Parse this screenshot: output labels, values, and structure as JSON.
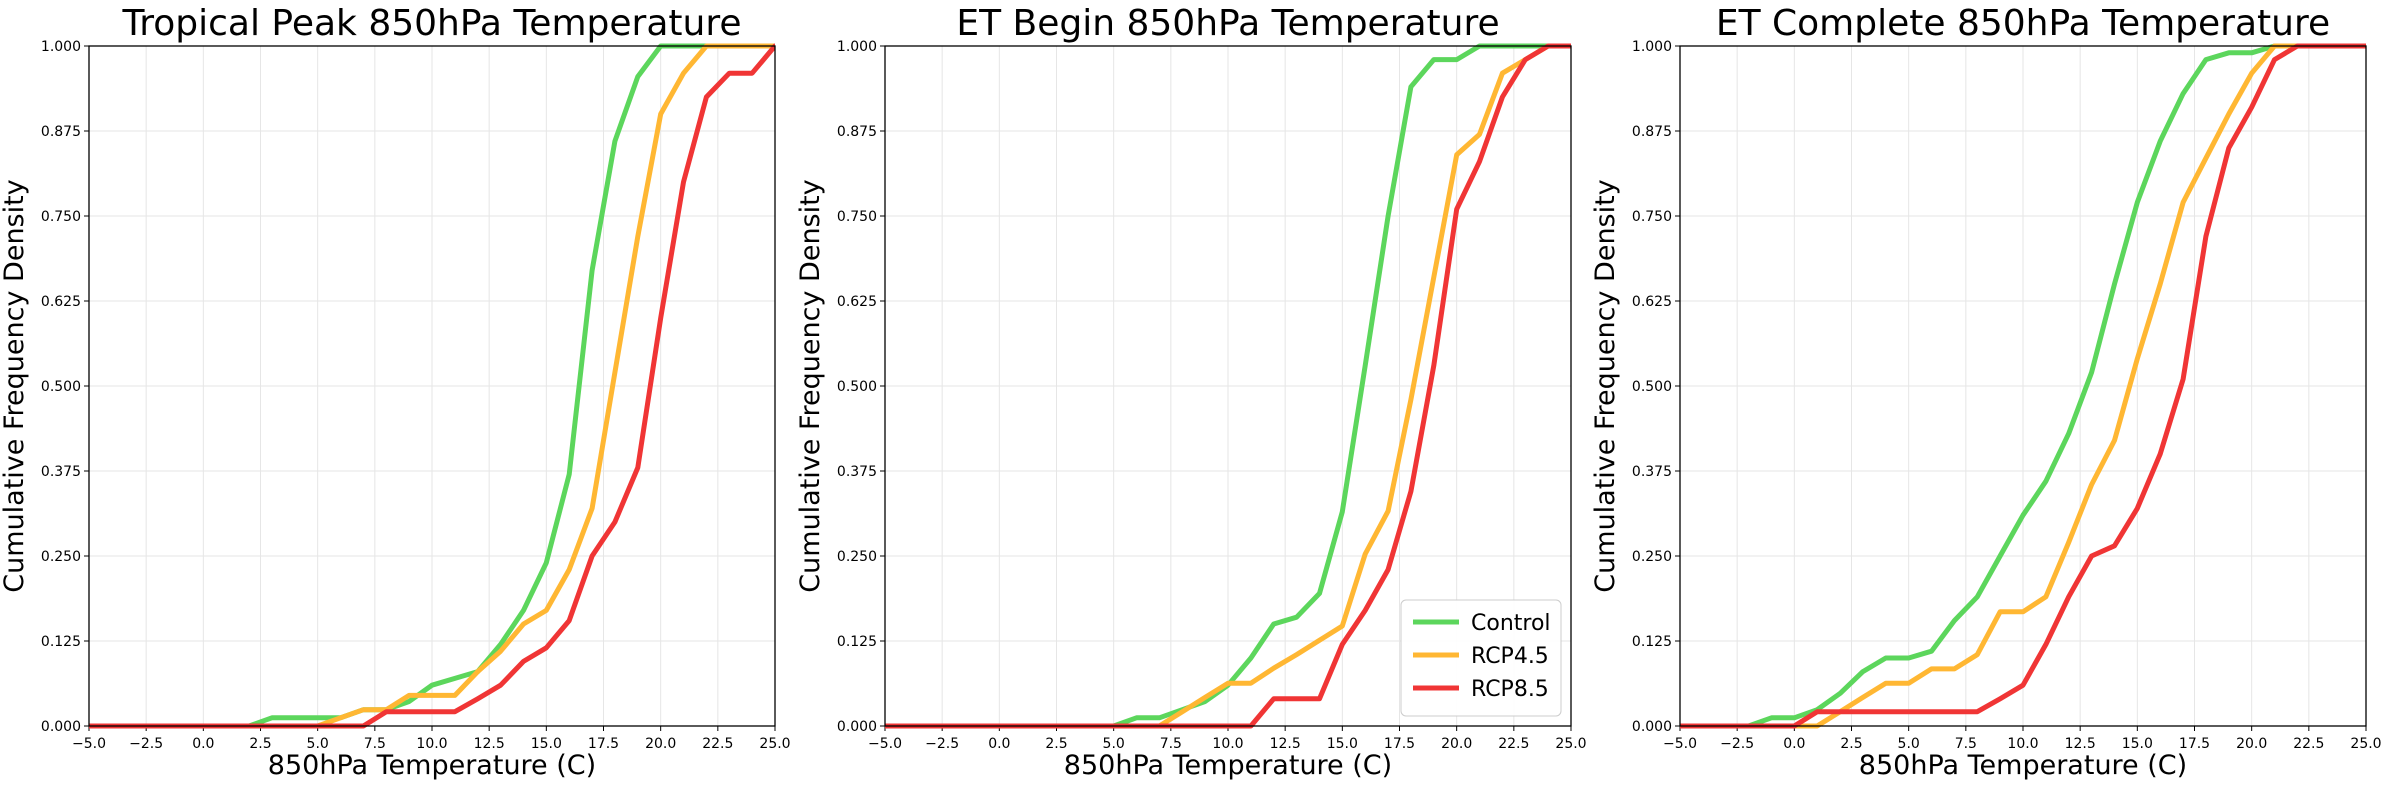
{
  "chart_data": [
    {
      "type": "line",
      "title": "Tropical Peak 850hPa Temperature",
      "xlabel": "850hPa Temperature (C)",
      "ylabel": "Cumulative Frequency Density",
      "xlim": [
        -5,
        25
      ],
      "ylim": [
        0,
        1
      ],
      "xticks": [
        "−5.0",
        "−2.5",
        "0.0",
        "2.5",
        "5.0",
        "7.5",
        "10.0",
        "12.5",
        "15.0",
        "17.5",
        "20.0",
        "22.5",
        "25.0"
      ],
      "yticks": [
        "0.000",
        "0.125",
        "0.250",
        "0.375",
        "0.500",
        "0.625",
        "0.750",
        "0.875",
        "1.000"
      ],
      "grid": true,
      "legend": null,
      "series": [
        {
          "name": "Control",
          "color": "#5cd65c",
          "points": [
            [
              -5,
              0
            ],
            [
              2,
              0
            ],
            [
              3,
              0.012
            ],
            [
              4,
              0.012
            ],
            [
              5,
              0.012
            ],
            [
              6,
              0.012
            ],
            [
              7,
              0.024
            ],
            [
              8,
              0.024
            ],
            [
              9,
              0.036
            ],
            [
              10,
              0.06
            ],
            [
              11,
              0.07
            ],
            [
              12,
              0.08
            ],
            [
              13,
              0.12
            ],
            [
              14,
              0.17
            ],
            [
              15,
              0.24
            ],
            [
              16,
              0.37
            ],
            [
              17,
              0.67
            ],
            [
              18,
              0.86
            ],
            [
              19,
              0.955
            ],
            [
              20,
              1.0
            ],
            [
              25,
              1.0
            ]
          ]
        },
        {
          "name": "RCP4.5",
          "color": "#ffb733",
          "points": [
            [
              -5,
              0
            ],
            [
              5,
              0
            ],
            [
              6,
              0.012
            ],
            [
              7,
              0.024
            ],
            [
              8,
              0.024
            ],
            [
              9,
              0.045
            ],
            [
              10,
              0.045
            ],
            [
              11,
              0.045
            ],
            [
              12,
              0.08
            ],
            [
              13,
              0.11
            ],
            [
              14,
              0.15
            ],
            [
              15,
              0.17
            ],
            [
              16,
              0.23
            ],
            [
              17,
              0.32
            ],
            [
              18,
              0.52
            ],
            [
              19,
              0.72
            ],
            [
              20,
              0.9
            ],
            [
              21,
              0.96
            ],
            [
              22,
              1.0
            ],
            [
              25,
              1.0
            ]
          ]
        },
        {
          "name": "RCP8.5",
          "color": "#f03535",
          "points": [
            [
              -5,
              0
            ],
            [
              7,
              0
            ],
            [
              8,
              0.021
            ],
            [
              9,
              0.021
            ],
            [
              10,
              0.021
            ],
            [
              11,
              0.021
            ],
            [
              12,
              0.04
            ],
            [
              13,
              0.06
            ],
            [
              14,
              0.095
            ],
            [
              15,
              0.115
            ],
            [
              16,
              0.155
            ],
            [
              17,
              0.25
            ],
            [
              18,
              0.3
            ],
            [
              19,
              0.38
            ],
            [
              20,
              0.6
            ],
            [
              21,
              0.8
            ],
            [
              22,
              0.925
            ],
            [
              23,
              0.96
            ],
            [
              24,
              0.96
            ],
            [
              25,
              1.0
            ]
          ]
        }
      ]
    },
    {
      "type": "line",
      "title": "ET Begin 850hPa Temperature",
      "xlabel": "850hPa Temperature (C)",
      "ylabel": "Cumulative Frequency Density",
      "xlim": [
        -5,
        25
      ],
      "ylim": [
        0,
        1
      ],
      "xticks": [
        "−5.0",
        "−2.5",
        "0.0",
        "2.5",
        "5.0",
        "7.5",
        "10.0",
        "12.5",
        "15.0",
        "17.5",
        "20.0",
        "22.5",
        "25.0"
      ],
      "yticks": [
        "0.000",
        "0.125",
        "0.250",
        "0.375",
        "0.500",
        "0.625",
        "0.750",
        "0.875",
        "1.000"
      ],
      "grid": true,
      "legend": "lower right",
      "series": [
        {
          "name": "Control",
          "color": "#5cd65c",
          "points": [
            [
              -5,
              0
            ],
            [
              5,
              0
            ],
            [
              6,
              0.012
            ],
            [
              7,
              0.012
            ],
            [
              8,
              0.024
            ],
            [
              9,
              0.036
            ],
            [
              10,
              0.06
            ],
            [
              11,
              0.1
            ],
            [
              12,
              0.15
            ],
            [
              13,
              0.16
            ],
            [
              14,
              0.195
            ],
            [
              15,
              0.315
            ],
            [
              16,
              0.53
            ],
            [
              17,
              0.75
            ],
            [
              18,
              0.94
            ],
            [
              19,
              0.98
            ],
            [
              20,
              0.98
            ],
            [
              21,
              1.0
            ],
            [
              25,
              1.0
            ]
          ]
        },
        {
          "name": "RCP4.5",
          "color": "#ffb733",
          "points": [
            [
              -5,
              0
            ],
            [
              7,
              0
            ],
            [
              8,
              0.021
            ],
            [
              9,
              0.042
            ],
            [
              10,
              0.063
            ],
            [
              11,
              0.063
            ],
            [
              12,
              0.085
            ],
            [
              13,
              0.105
            ],
            [
              14,
              0.126
            ],
            [
              15,
              0.147
            ],
            [
              16,
              0.253
            ],
            [
              17,
              0.316
            ],
            [
              18,
              0.48
            ],
            [
              19,
              0.66
            ],
            [
              20,
              0.84
            ],
            [
              21,
              0.87
            ],
            [
              22,
              0.96
            ],
            [
              23,
              0.98
            ],
            [
              24,
              1.0
            ],
            [
              25,
              1.0
            ]
          ]
        },
        {
          "name": "RCP8.5",
          "color": "#f03535",
          "points": [
            [
              -5,
              0
            ],
            [
              11,
              0
            ],
            [
              12,
              0.04
            ],
            [
              13,
              0.04
            ],
            [
              14,
              0.04
            ],
            [
              15,
              0.12
            ],
            [
              16,
              0.17
            ],
            [
              17,
              0.23
            ],
            [
              18,
              0.345
            ],
            [
              19,
              0.53
            ],
            [
              20,
              0.76
            ],
            [
              21,
              0.83
            ],
            [
              22,
              0.925
            ],
            [
              23,
              0.98
            ],
            [
              24,
              1.0
            ],
            [
              25,
              1.0
            ]
          ]
        }
      ]
    },
    {
      "type": "line",
      "title": "ET Complete 850hPa Temperature",
      "xlabel": "850hPa Temperature (C)",
      "ylabel": "Cumulative Frequency Density",
      "xlim": [
        -5,
        25
      ],
      "ylim": [
        0,
        1
      ],
      "xticks": [
        "−5.0",
        "−2.5",
        "0.0",
        "2.5",
        "5.0",
        "7.5",
        "10.0",
        "12.5",
        "15.0",
        "17.5",
        "20.0",
        "22.5",
        "25.0"
      ],
      "yticks": [
        "0.000",
        "0.125",
        "0.250",
        "0.375",
        "0.500",
        "0.625",
        "0.750",
        "0.875",
        "1.000"
      ],
      "grid": true,
      "legend": null,
      "series": [
        {
          "name": "Control",
          "color": "#5cd65c",
          "points": [
            [
              -5,
              0
            ],
            [
              -2,
              0
            ],
            [
              -1,
              0.012
            ],
            [
              0,
              0.012
            ],
            [
              1,
              0.024
            ],
            [
              2,
              0.048
            ],
            [
              3,
              0.08
            ],
            [
              4,
              0.1
            ],
            [
              5,
              0.1
            ],
            [
              6,
              0.11
            ],
            [
              7,
              0.155
            ],
            [
              8,
              0.19
            ],
            [
              9,
              0.25
            ],
            [
              10,
              0.31
            ],
            [
              11,
              0.36
            ],
            [
              12,
              0.43
            ],
            [
              13,
              0.52
            ],
            [
              14,
              0.65
            ],
            [
              15,
              0.77
            ],
            [
              16,
              0.86
            ],
            [
              17,
              0.93
            ],
            [
              18,
              0.98
            ],
            [
              19,
              0.99
            ],
            [
              20,
              0.99
            ],
            [
              21,
              1.0
            ],
            [
              25,
              1.0
            ]
          ]
        },
        {
          "name": "RCP4.5",
          "color": "#ffb733",
          "points": [
            [
              -5,
              0
            ],
            [
              1,
              0
            ],
            [
              2,
              0.021
            ],
            [
              3,
              0.042
            ],
            [
              4,
              0.063
            ],
            [
              5,
              0.063
            ],
            [
              6,
              0.084
            ],
            [
              7,
              0.084
            ],
            [
              8,
              0.105
            ],
            [
              9,
              0.168
            ],
            [
              10,
              0.168
            ],
            [
              11,
              0.19
            ],
            [
              12,
              0.27
            ],
            [
              13,
              0.355
            ],
            [
              14,
              0.42
            ],
            [
              15,
              0.54
            ],
            [
              16,
              0.65
            ],
            [
              17,
              0.77
            ],
            [
              18,
              0.835
            ],
            [
              19,
              0.9
            ],
            [
              20,
              0.96
            ],
            [
              21,
              1.0
            ],
            [
              25,
              1.0
            ]
          ]
        },
        {
          "name": "RCP8.5",
          "color": "#f03535",
          "points": [
            [
              -5,
              0
            ],
            [
              0,
              0
            ],
            [
              1,
              0.021
            ],
            [
              2,
              0.021
            ],
            [
              3,
              0.021
            ],
            [
              4,
              0.021
            ],
            [
              5,
              0.021
            ],
            [
              6,
              0.021
            ],
            [
              7,
              0.021
            ],
            [
              8,
              0.021
            ],
            [
              9,
              0.04
            ],
            [
              10,
              0.06
            ],
            [
              11,
              0.12
            ],
            [
              12,
              0.19
            ],
            [
              13,
              0.25
            ],
            [
              14,
              0.265
            ],
            [
              15,
              0.32
            ],
            [
              16,
              0.4
            ],
            [
              17,
              0.51
            ],
            [
              18,
              0.72
            ],
            [
              19,
              0.85
            ],
            [
              20,
              0.91
            ],
            [
              21,
              0.98
            ],
            [
              22,
              1.0
            ],
            [
              25,
              1.0
            ]
          ]
        }
      ]
    }
  ]
}
